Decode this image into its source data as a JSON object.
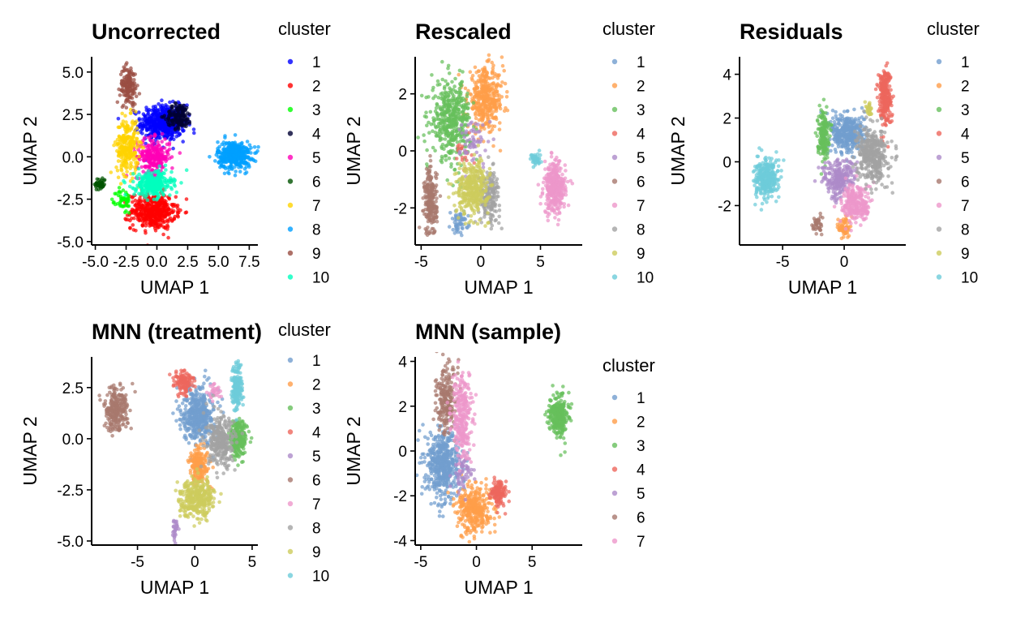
{
  "palettes": {
    "tableau": [
      "#729ECE",
      "#FF9E4A",
      "#67BF5C",
      "#ED665D",
      "#AD8BC9",
      "#A8786E",
      "#ED97CA",
      "#A2A2A2",
      "#CDCC5D",
      "#6DCCDA"
    ],
    "bright": [
      "#0000FF",
      "#FF0000",
      "#00FF00",
      "#000033",
      "#FF00B6",
      "#005300",
      "#FFD300",
      "#009FFF",
      "#9A4D42",
      "#00FFBE"
    ]
  },
  "chart_data": [
    {
      "type": "scatter",
      "title": "Uncorrected",
      "xlabel": "UMAP 1",
      "ylabel": "UMAP 2",
      "xlim": [
        -5.3,
        8.2
      ],
      "ylim": [
        -5.2,
        5.9
      ],
      "xticks": [
        -5.0,
        -2.5,
        0.0,
        2.5,
        5.0,
        7.5
      ],
      "xtick_labels": [
        "-5.0",
        "-2.5",
        "0.0",
        "2.5",
        "5.0",
        "7.5"
      ],
      "yticks": [
        -5.0,
        -2.5,
        0.0,
        2.5,
        5.0
      ],
      "ytick_labels": [
        "-5.0",
        "-2.5",
        "0.0",
        "2.5",
        "5.0"
      ],
      "grid": false,
      "legend": {
        "title": "cluster",
        "position": "right",
        "palette": "bright",
        "entries": [
          "1",
          "2",
          "3",
          "4",
          "5",
          "6",
          "7",
          "8",
          "9",
          "10"
        ]
      },
      "clusters": [
        {
          "label": "1",
          "cx": 0.5,
          "cy": 2.0,
          "sx": 1.2,
          "sy": 0.7,
          "n": 520
        },
        {
          "label": "2",
          "cx": -0.3,
          "cy": -3.2,
          "sx": 1.2,
          "sy": 0.7,
          "n": 450
        },
        {
          "label": "3",
          "cx": -2.7,
          "cy": -2.6,
          "sx": 0.4,
          "sy": 0.5,
          "n": 50
        },
        {
          "label": "4",
          "cx": 1.8,
          "cy": 2.4,
          "sx": 0.7,
          "sy": 0.5,
          "n": 150
        },
        {
          "label": "5",
          "cx": -0.3,
          "cy": 0.0,
          "sx": 0.9,
          "sy": 0.7,
          "n": 250
        },
        {
          "label": "6",
          "cx": -4.6,
          "cy": -1.6,
          "sx": 0.3,
          "sy": 0.25,
          "n": 40
        },
        {
          "label": "7",
          "cx": -2.4,
          "cy": 0.6,
          "sx": 0.6,
          "sy": 1.1,
          "n": 250
        },
        {
          "label": "8",
          "cx": 6.3,
          "cy": 0.1,
          "sx": 0.9,
          "sy": 0.55,
          "n": 400
        },
        {
          "label": "9",
          "cx": -2.3,
          "cy": 4.2,
          "sx": 0.45,
          "sy": 0.75,
          "n": 150
        },
        {
          "label": "10",
          "cx": -0.3,
          "cy": -1.6,
          "sx": 1.0,
          "sy": 0.5,
          "n": 300
        }
      ]
    },
    {
      "type": "scatter",
      "title": "Rescaled",
      "xlabel": "UMAP 1",
      "ylabel": "UMAP 2",
      "xlim": [
        -5.5,
        8.5
      ],
      "ylim": [
        -3.3,
        3.3
      ],
      "xticks": [
        -5,
        0,
        5
      ],
      "xtick_labels": [
        "-5",
        "0",
        "5"
      ],
      "yticks": [
        -2,
        0,
        2
      ],
      "ytick_labels": [
        "-2",
        "0",
        "2"
      ],
      "grid": false,
      "legend": {
        "title": "cluster",
        "position": "right",
        "palette": "tableau",
        "entries": [
          "1",
          "2",
          "3",
          "4",
          "5",
          "6",
          "7",
          "8",
          "9",
          "10"
        ]
      },
      "clusters": [
        {
          "label": "1",
          "cx": -1.8,
          "cy": -2.5,
          "sx": 0.5,
          "sy": 0.25,
          "n": 60
        },
        {
          "label": "2",
          "cx": 0.4,
          "cy": 1.8,
          "sx": 1.0,
          "sy": 0.7,
          "n": 400
        },
        {
          "label": "3",
          "cx": -2.5,
          "cy": 1.1,
          "sx": 1.1,
          "sy": 0.9,
          "n": 450
        },
        {
          "label": "4",
          "cx": -1.5,
          "cy": 0.0,
          "sx": 0.5,
          "sy": 0.5,
          "n": 20
        },
        {
          "label": "5",
          "cx": -0.5,
          "cy": 0.3,
          "sx": 0.8,
          "sy": 0.6,
          "n": 60
        },
        {
          "label": "6",
          "cx": -4.2,
          "cy": -1.8,
          "sx": 0.35,
          "sy": 0.8,
          "n": 220
        },
        {
          "label": "7",
          "cx": 6.2,
          "cy": -1.3,
          "sx": 0.6,
          "sy": 0.6,
          "n": 350
        },
        {
          "label": "8",
          "cx": 0.7,
          "cy": -1.6,
          "sx": 0.6,
          "sy": 0.6,
          "n": 180
        },
        {
          "label": "9",
          "cx": -0.7,
          "cy": -1.3,
          "sx": 0.9,
          "sy": 0.6,
          "n": 350
        },
        {
          "label": "10",
          "cx": 4.6,
          "cy": -0.3,
          "sx": 0.3,
          "sy": 0.15,
          "n": 40
        }
      ]
    },
    {
      "type": "scatter",
      "title": "Residuals",
      "xlabel": "UMAP 1",
      "ylabel": "UMAP 2",
      "xlim": [
        -8.5,
        5.0
      ],
      "ylim": [
        -3.8,
        4.8
      ],
      "xticks": [
        -5,
        0
      ],
      "xtick_labels": [
        "-5",
        "0"
      ],
      "yticks": [
        -2,
        0,
        2,
        4
      ],
      "ytick_labels": [
        "-2",
        "0",
        "2",
        "4"
      ],
      "grid": false,
      "legend": {
        "title": "cluster",
        "position": "right",
        "palette": "tableau",
        "entries": [
          "1",
          "2",
          "3",
          "4",
          "5",
          "6",
          "7",
          "8",
          "9",
          "10"
        ]
      },
      "clusters": [
        {
          "label": "1",
          "cx": 0.3,
          "cy": 1.3,
          "sx": 0.9,
          "sy": 0.6,
          "n": 400
        },
        {
          "label": "2",
          "cx": 0.0,
          "cy": -3.0,
          "sx": 0.3,
          "sy": 0.35,
          "n": 60
        },
        {
          "label": "3",
          "cx": -1.7,
          "cy": 1.3,
          "sx": 0.3,
          "sy": 0.7,
          "n": 180
        },
        {
          "label": "4",
          "cx": 3.3,
          "cy": 3.0,
          "sx": 0.35,
          "sy": 0.9,
          "n": 250
        },
        {
          "label": "5",
          "cx": -0.4,
          "cy": -0.8,
          "sx": 0.9,
          "sy": 0.6,
          "n": 250
        },
        {
          "label": "6",
          "cx": -2.2,
          "cy": -2.9,
          "sx": 0.25,
          "sy": 0.3,
          "n": 40
        },
        {
          "label": "7",
          "cx": 1.0,
          "cy": -1.9,
          "sx": 0.8,
          "sy": 0.6,
          "n": 250
        },
        {
          "label": "8",
          "cx": 2.3,
          "cy": 0.3,
          "sx": 0.8,
          "sy": 0.8,
          "n": 400
        },
        {
          "label": "9",
          "cx": 2.0,
          "cy": 2.4,
          "sx": 0.2,
          "sy": 0.2,
          "n": 25
        },
        {
          "label": "10",
          "cx": -6.3,
          "cy": -0.8,
          "sx": 0.65,
          "sy": 0.6,
          "n": 300
        }
      ]
    },
    {
      "type": "scatter",
      "title": "MNN (treatment)",
      "xlabel": "UMAP 1",
      "ylabel": "UMAP 2",
      "xlim": [
        -9.0,
        5.5
      ],
      "ylim": [
        -5.2,
        4.0
      ],
      "xticks": [
        -5,
        0,
        5
      ],
      "xtick_labels": [
        "-5",
        "0",
        "5"
      ],
      "yticks": [
        -5.0,
        -2.5,
        0.0,
        2.5
      ],
      "ytick_labels": [
        "-5.0",
        "-2.5",
        "0.0",
        "2.5"
      ],
      "grid": false,
      "legend": {
        "title": "cluster",
        "position": "right",
        "palette": "tableau",
        "entries": [
          "1",
          "2",
          "3",
          "4",
          "5",
          "6",
          "7",
          "8",
          "9",
          "10"
        ]
      },
      "clusters": [
        {
          "label": "1",
          "cx": 0.3,
          "cy": 1.2,
          "sx": 0.9,
          "sy": 0.9,
          "n": 450
        },
        {
          "label": "2",
          "cx": 0.4,
          "cy": -1.3,
          "sx": 0.6,
          "sy": 0.6,
          "n": 200
        },
        {
          "label": "3",
          "cx": 3.8,
          "cy": 0.0,
          "sx": 0.5,
          "sy": 0.6,
          "n": 250
        },
        {
          "label": "4",
          "cx": -1.0,
          "cy": 2.8,
          "sx": 0.6,
          "sy": 0.4,
          "n": 120
        },
        {
          "label": "5",
          "cx": -1.7,
          "cy": -4.4,
          "sx": 0.15,
          "sy": 0.4,
          "n": 30
        },
        {
          "label": "6",
          "cx": -6.9,
          "cy": 1.4,
          "sx": 0.7,
          "sy": 0.7,
          "n": 250
        },
        {
          "label": "7",
          "cx": 1.7,
          "cy": 2.3,
          "sx": 0.4,
          "sy": 0.3,
          "n": 30
        },
        {
          "label": "8",
          "cx": 2.3,
          "cy": -0.2,
          "sx": 0.8,
          "sy": 0.8,
          "n": 300
        },
        {
          "label": "9",
          "cx": 0.2,
          "cy": -2.9,
          "sx": 1.0,
          "sy": 0.6,
          "n": 350
        },
        {
          "label": "10",
          "cx": 3.7,
          "cy": 2.5,
          "sx": 0.3,
          "sy": 0.75,
          "n": 200
        }
      ]
    },
    {
      "type": "scatter",
      "title": "MNN (sample)",
      "xlabel": "UMAP 1",
      "ylabel": "UMAP 2",
      "xlim": [
        -5.5,
        9.5
      ],
      "ylim": [
        -4.2,
        4.2
      ],
      "xticks": [
        -5,
        0,
        5
      ],
      "xtick_labels": [
        "-5",
        "0",
        "5"
      ],
      "yticks": [
        -4,
        -2,
        0,
        2,
        4
      ],
      "ytick_labels": [
        "-4",
        "-2",
        "0",
        "2",
        "4"
      ],
      "grid": false,
      "legend": {
        "title": "cluster",
        "position": "right",
        "palette": "tableau",
        "entries": [
          "1",
          "2",
          "3",
          "4",
          "5",
          "6",
          "7"
        ]
      },
      "clusters": [
        {
          "label": "1",
          "cx": -3.0,
          "cy": -0.6,
          "sx": 1.0,
          "sy": 1.0,
          "n": 500
        },
        {
          "label": "2",
          "cx": -0.2,
          "cy": -2.6,
          "sx": 1.0,
          "sy": 0.7,
          "n": 350
        },
        {
          "label": "3",
          "cx": 7.4,
          "cy": 1.6,
          "sx": 0.55,
          "sy": 0.6,
          "n": 300
        },
        {
          "label": "4",
          "cx": 2.0,
          "cy": -1.9,
          "sx": 0.5,
          "sy": 0.4,
          "n": 120
        },
        {
          "label": "5",
          "cx": -1.2,
          "cy": -0.9,
          "sx": 0.6,
          "sy": 0.5,
          "n": 60
        },
        {
          "label": "6",
          "cx": -2.7,
          "cy": 2.3,
          "sx": 0.6,
          "sy": 1.0,
          "n": 220
        },
        {
          "label": "7",
          "cx": -1.3,
          "cy": 1.5,
          "sx": 0.6,
          "sy": 1.2,
          "n": 280
        }
      ]
    }
  ]
}
